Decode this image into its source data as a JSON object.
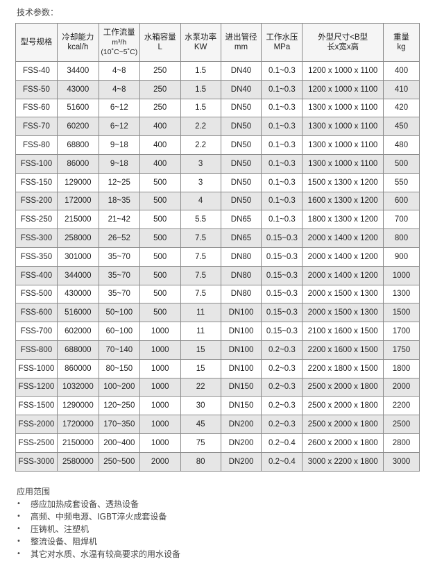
{
  "title": "技术参数：",
  "headers": [
    [
      "型号规格"
    ],
    [
      "冷却能力",
      "kcal/h"
    ],
    [
      "工作流量",
      "m³/h",
      "(10˚C~5˚C)"
    ],
    [
      "水箱容量",
      "L"
    ],
    [
      "水泵功率",
      "KW"
    ],
    [
      "进出管径",
      "mm"
    ],
    [
      "工作水压",
      "MPa"
    ],
    [
      "外型尺寸<B型",
      "长x宽x高"
    ],
    [
      "重量",
      "kg"
    ]
  ],
  "rows": [
    [
      "FSS-40",
      "34400",
      "4~8",
      "250",
      "1.5",
      "DN40",
      "0.1~0.3",
      "1200 x 1000 x 1100",
      "400"
    ],
    [
      "FSS-50",
      "43000",
      "4~8",
      "250",
      "1.5",
      "DN40",
      "0.1~0.3",
      "1200 x 1000 x 1100",
      "410"
    ],
    [
      "FSS-60",
      "51600",
      "6~12",
      "250",
      "1.5",
      "DN50",
      "0.1~0.3",
      "1300 x 1000 x 1100",
      "420"
    ],
    [
      "FSS-70",
      "60200",
      "6~12",
      "400",
      "2.2",
      "DN50",
      "0.1~0.3",
      "1300 x 1000 x 1100",
      "450"
    ],
    [
      "FSS-80",
      "68800",
      "9~18",
      "400",
      "2.2",
      "DN50",
      "0.1~0.3",
      "1300 x 1000 x 1100",
      "480"
    ],
    [
      "FSS-100",
      "86000",
      "9~18",
      "400",
      "3",
      "DN50",
      "0.1~0.3",
      "1300 x 1000 x 1100",
      "500"
    ],
    [
      "FSS-150",
      "129000",
      "12~25",
      "500",
      "3",
      "DN50",
      "0.1~0.3",
      "1500 x 1300 x 1200",
      "550"
    ],
    [
      "FSS-200",
      "172000",
      "18~35",
      "500",
      "4",
      "DN50",
      "0.1~0.3",
      "1600 x 1300 x 1200",
      "600"
    ],
    [
      "FSS-250",
      "215000",
      "21~42",
      "500",
      "5.5",
      "DN65",
      "0.1~0.3",
      "1800 x 1300  x 1200",
      "700"
    ],
    [
      "FSS-300",
      "258000",
      "26~52",
      "500",
      "7.5",
      "DN65",
      "0.15~0.3",
      "2000 x 1400 x 1200",
      "800"
    ],
    [
      "FSS-350",
      "301000",
      "35~70",
      "500",
      "7.5",
      "DN80",
      "0.15~0.3",
      "2000 x 1400 x 1200",
      "900"
    ],
    [
      "FSS-400",
      "344000",
      "35~70",
      "500",
      "7.5",
      "DN80",
      "0.15~0.3",
      "2000 x 1400 x 1200",
      "1000"
    ],
    [
      "FSS-500",
      "430000",
      "35~70",
      "500",
      "7.5",
      "DN80",
      "0.15~0.3",
      "2000 x 1500 x 1300",
      "1300"
    ],
    [
      "FSS-600",
      "516000",
      "50~100",
      "500",
      "11",
      "DN100",
      "0.15~0.3",
      "2000 x 1500 x 1300",
      "1500"
    ],
    [
      "FSS-700",
      "602000",
      "60~100",
      "1000",
      "11",
      "DN100",
      "0.15~0.3",
      "2100 x 1600 x 1500",
      "1700"
    ],
    [
      "FSS-800",
      "688000",
      "70~140",
      "1000",
      "15",
      "DN100",
      "0.2~0.3",
      "2200 x 1600 x 1500",
      "1750"
    ],
    [
      "FSS-1000",
      "860000",
      "80~150",
      "1000",
      "15",
      "DN100",
      "0.2~0.3",
      "2200 x 1800 x 1500",
      "1800"
    ],
    [
      "FSS-1200",
      "1032000",
      "100~200",
      "1000",
      "22",
      "DN150",
      "0.2~0.3",
      "2500 x 2000 x 1800",
      "2000"
    ],
    [
      "FSS-1500",
      "1290000",
      "120~250",
      "1000",
      "30",
      "DN150",
      "0.2~0.3",
      "2500 x 2000 x 1800",
      "2200"
    ],
    [
      "FSS-2000",
      "1720000",
      "170~350",
      "1000",
      "45",
      "DN200",
      "0.2~0.3",
      "2500 x 2000 x 1800",
      "2500"
    ],
    [
      "FSS-2500",
      "2150000",
      "200~400",
      "1000",
      "75",
      "DN200",
      "0.2~0.4",
      "2600 x 2000 x 1800",
      "2800"
    ],
    [
      "FSS-3000",
      "2580000",
      "250~500",
      "2000",
      "80",
      "DN200",
      "0.2~0.4",
      "3000 x 2200 x 1800",
      "3000"
    ]
  ],
  "applications": {
    "heading": "应用范围",
    "items": [
      "感应加热成套设备、透热设备",
      "高频、中频电源、IGBT淬火成套设备",
      "压铸机、注塑机",
      "整流设备、阻焊机",
      "其它对水质、水温有较高要求的用水设备"
    ]
  }
}
